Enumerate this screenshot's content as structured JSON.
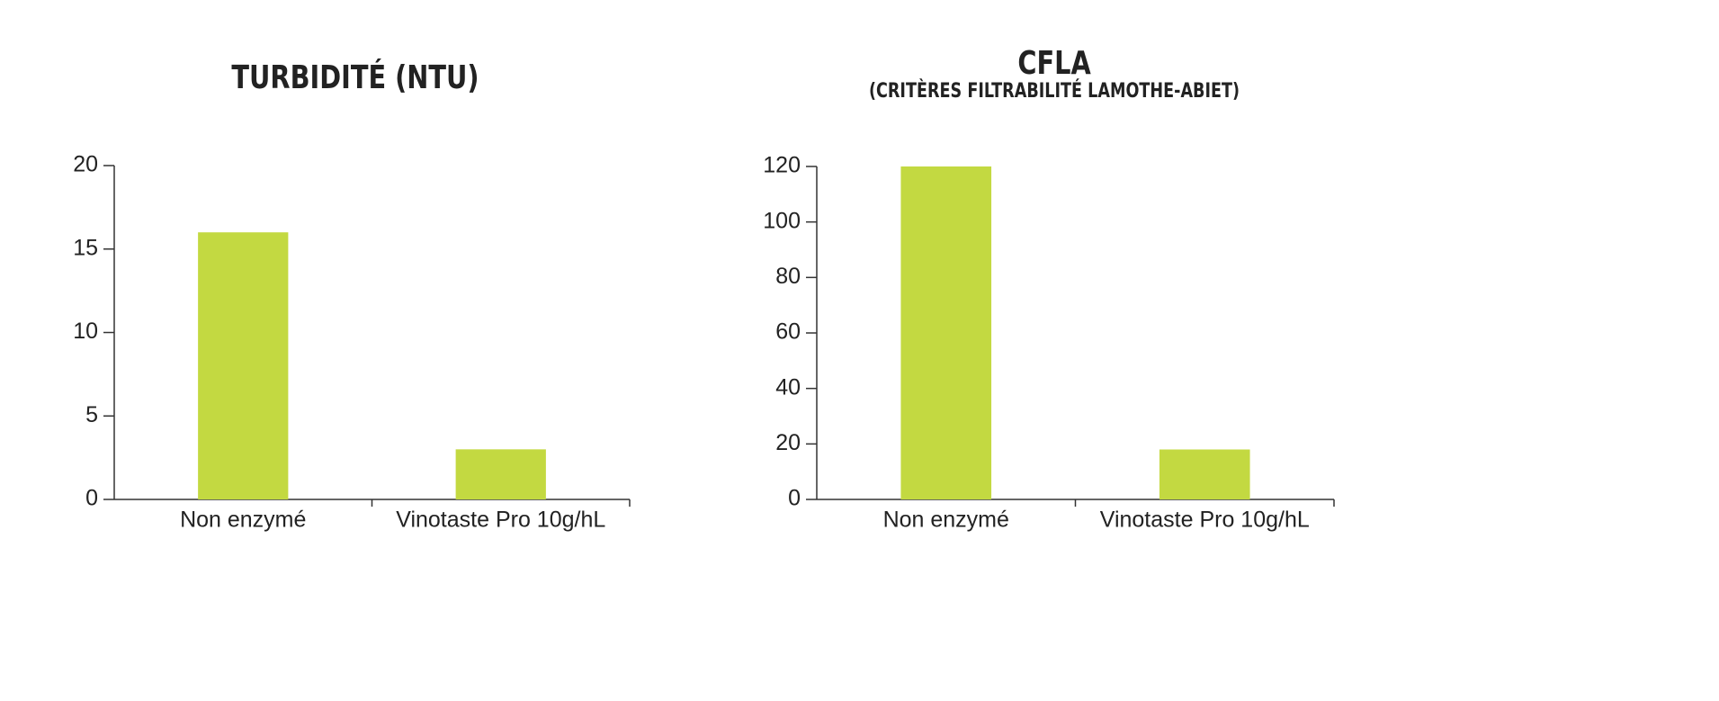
{
  "chart_data": [
    {
      "type": "bar",
      "title": "TURBIDITÉ (NTU)",
      "categories": [
        "Non enzymé",
        "Vinotaste Pro 10g/hL"
      ],
      "values": [
        16,
        3
      ],
      "color": "#c3d941",
      "ylim": [
        0,
        20
      ],
      "yticks": [
        0,
        5,
        10,
        15,
        20
      ]
    },
    {
      "type": "bar",
      "title": "CFLA",
      "subtitle": "(CRITÈRES FILTRABILITÉ LAMOTHE-ABIET)",
      "categories": [
        "Non enzymé",
        "Vinotaste Pro 10g/hL"
      ],
      "values": [
        120,
        18
      ],
      "color": "#c3d941",
      "ylim": [
        0,
        120
      ],
      "yticks": [
        0,
        20,
        40,
        60,
        80,
        100,
        120
      ]
    }
  ]
}
